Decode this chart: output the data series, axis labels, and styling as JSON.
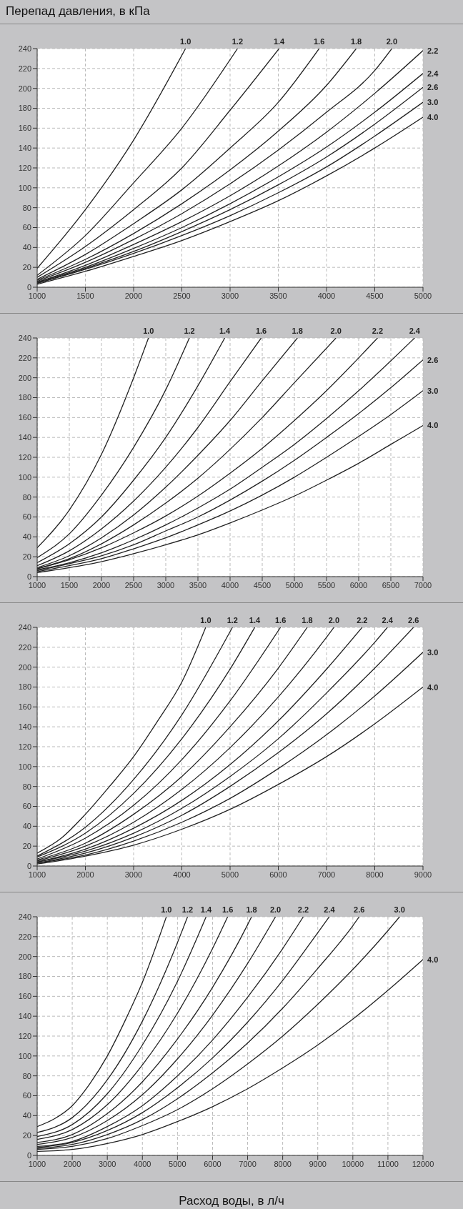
{
  "chart_data": [
    {
      "type": "line",
      "ylabel": "Перепад давления, в кПа",
      "xlim": [
        1000,
        5000
      ],
      "xticks": [
        1000,
        1500,
        2000,
        2500,
        3000,
        3500,
        4000,
        4500,
        5000
      ],
      "ylim": [
        0,
        240
      ],
      "yticks": [
        0,
        20,
        40,
        60,
        80,
        100,
        120,
        140,
        160,
        180,
        200,
        220,
        240
      ],
      "grid": true,
      "marker": "none",
      "series": [
        {
          "name": "1.0",
          "color": "#222222",
          "x": [
            1000,
            1500,
            2000,
            2538
          ],
          "values": [
            19,
            78,
            148,
            240
          ]
        },
        {
          "name": "1.2",
          "color": "#222222",
          "x": [
            1000,
            1500,
            2000,
            2500,
            3077
          ],
          "values": [
            12,
            52,
            105,
            160,
            240
          ]
        },
        {
          "name": "1.4",
          "color": "#222222",
          "x": [
            1000,
            1500,
            2000,
            2500,
            3000,
            3508
          ],
          "values": [
            10,
            41,
            78,
            120,
            178,
            240
          ]
        },
        {
          "name": "1.6",
          "color": "#222222",
          "x": [
            1000,
            1500,
            2000,
            2500,
            3000,
            3500,
            3923
          ],
          "values": [
            8,
            33,
            64,
            98,
            140,
            186,
            240
          ]
        },
        {
          "name": "1.8",
          "color": "#222222",
          "x": [
            1000,
            1500,
            2000,
            2500,
            3000,
            3500,
            4000,
            4308
          ],
          "values": [
            7,
            28,
            54,
            84,
            118,
            157,
            203,
            240
          ]
        },
        {
          "name": "2.0",
          "color": "#222222",
          "x": [
            1000,
            1500,
            2000,
            2500,
            3000,
            3500,
            4000,
            4500,
            4677
          ],
          "values": [
            6,
            25,
            48,
            74,
            104,
            138,
            176,
            218,
            240
          ]
        },
        {
          "name": "2.2",
          "color": "#222222",
          "x": [
            1000,
            1500,
            2000,
            2500,
            3000,
            3500,
            4000,
            4500,
            5000
          ],
          "values": [
            5,
            22,
            43,
            66,
            92,
            122,
            156,
            195,
            238
          ]
        },
        {
          "name": "2.4",
          "color": "#222222",
          "x": [
            1000,
            1500,
            2000,
            2500,
            3000,
            3500,
            4000,
            4500,
            5000
          ],
          "values": [
            5,
            20,
            39,
            60,
            84,
            111,
            141,
            176,
            215
          ]
        },
        {
          "name": "2.6",
          "color": "#222222",
          "x": [
            1000,
            1500,
            2000,
            2500,
            3000,
            3500,
            4000,
            4500,
            5000
          ],
          "values": [
            4,
            19,
            36,
            56,
            78,
            103,
            131,
            164,
            201
          ]
        },
        {
          "name": "3.0",
          "color": "#222222",
          "x": [
            1000,
            1500,
            2000,
            2500,
            3000,
            3500,
            4000,
            4500,
            5000
          ],
          "values": [
            4,
            18,
            34,
            52,
            72,
            95,
            121,
            152,
            186
          ]
        },
        {
          "name": "4.0",
          "color": "#222222",
          "x": [
            1000,
            1500,
            2000,
            2500,
            3000,
            3500,
            4000,
            4500,
            5000
          ],
          "values": [
            3,
            16,
            31,
            47,
            66,
            87,
            112,
            140,
            171
          ]
        }
      ]
    },
    {
      "type": "line",
      "xlim": [
        1000,
        7000
      ],
      "xticks": [
        1000,
        1500,
        2000,
        2500,
        3000,
        3500,
        4000,
        4500,
        5000,
        5500,
        6000,
        6500,
        7000
      ],
      "ylim": [
        0,
        240
      ],
      "yticks": [
        0,
        20,
        40,
        60,
        80,
        100,
        120,
        140,
        160,
        180,
        200,
        220,
        240
      ],
      "grid": true,
      "marker": "none",
      "series": [
        {
          "name": "1.0",
          "color": "#222222",
          "x": [
            1000,
            1500,
            2000,
            2500,
            2731
          ],
          "values": [
            29,
            67,
            123,
            200,
            240
          ]
        },
        {
          "name": "1.2",
          "color": "#222222",
          "x": [
            1000,
            1500,
            2000,
            2500,
            3000,
            3367
          ],
          "values": [
            19,
            43,
            82,
            130,
            188,
            240
          ]
        },
        {
          "name": "1.4",
          "color": "#222222",
          "x": [
            1000,
            1500,
            2000,
            2500,
            3000,
            3500,
            3917
          ],
          "values": [
            14,
            33,
            60,
            97,
            140,
            192,
            240
          ]
        },
        {
          "name": "1.6",
          "color": "#222222",
          "x": [
            1000,
            1500,
            2000,
            2500,
            3000,
            3500,
            4000,
            4484
          ],
          "values": [
            11,
            26,
            48,
            76,
            110,
            150,
            196,
            240
          ]
        },
        {
          "name": "1.8",
          "color": "#222222",
          "x": [
            1000,
            1500,
            2000,
            2500,
            3000,
            3500,
            4000,
            4500,
            5047
          ],
          "values": [
            9,
            21,
            39,
            62,
            90,
            122,
            157,
            197,
            240
          ]
        },
        {
          "name": "2.0",
          "color": "#222222",
          "x": [
            1000,
            1500,
            2000,
            2500,
            3000,
            3500,
            4000,
            4500,
            5000,
            5647
          ],
          "values": [
            8,
            18,
            33,
            52,
            74,
            99,
            128,
            160,
            195,
            240
          ]
        },
        {
          "name": "2.2",
          "color": "#222222",
          "x": [
            1000,
            1500,
            2000,
            2500,
            3000,
            3500,
            4000,
            4500,
            5000,
            5500,
            6000,
            6293
          ],
          "values": [
            8,
            17,
            29,
            44,
            61,
            81,
            104,
            129,
            157,
            187,
            220,
            240
          ]
        },
        {
          "name": "2.4",
          "color": "#222222",
          "x": [
            1000,
            1500,
            2000,
            2500,
            3000,
            3500,
            4000,
            4500,
            5000,
            5500,
            6000,
            6500,
            6870
          ],
          "values": [
            7,
            14,
            24,
            37,
            52,
            69,
            88,
            110,
            133,
            159,
            187,
            217,
            240
          ]
        },
        {
          "name": "2.6",
          "color": "#222222",
          "x": [
            1000,
            1500,
            2000,
            2500,
            3000,
            3500,
            4000,
            4500,
            5000,
            5500,
            6000,
            6500,
            7000
          ],
          "values": [
            6,
            13,
            21,
            32,
            46,
            60,
            77,
            96,
            117,
            140,
            164,
            190,
            218
          ]
        },
        {
          "name": "3.0",
          "color": "#222222",
          "x": [
            1000,
            1500,
            2000,
            2500,
            3000,
            3500,
            4000,
            4500,
            5000,
            5500,
            6000,
            6500,
            7000
          ],
          "values": [
            5,
            11,
            18,
            28,
            39,
            52,
            66,
            82,
            100,
            120,
            141,
            163,
            187
          ]
        },
        {
          "name": "4.0",
          "color": "#222222",
          "x": [
            1000,
            1500,
            2000,
            2500,
            3000,
            3500,
            4000,
            4500,
            5000,
            5500,
            6000,
            6500,
            7000
          ],
          "values": [
            4,
            9,
            15,
            23,
            32,
            42,
            54,
            67,
            81,
            97,
            114,
            133,
            152
          ]
        }
      ]
    },
    {
      "type": "line",
      "xlim": [
        1000,
        9000
      ],
      "xticks": [
        1000,
        2000,
        3000,
        4000,
        5000,
        6000,
        7000,
        8000,
        9000
      ],
      "ylim": [
        0,
        240
      ],
      "yticks": [
        0,
        20,
        40,
        60,
        80,
        100,
        120,
        140,
        160,
        180,
        200,
        220,
        240
      ],
      "grid": true,
      "marker": "none",
      "series": [
        {
          "name": "1.0",
          "color": "#222222",
          "x": [
            1000,
            1500,
            2000,
            2500,
            3000,
            3500,
            4000,
            4495
          ],
          "values": [
            13,
            28,
            52,
            80,
            110,
            146,
            185,
            240
          ]
        },
        {
          "name": "1.2",
          "color": "#222222",
          "x": [
            1000,
            2000,
            3000,
            4000,
            5049
          ],
          "values": [
            10,
            39,
            87,
            152,
            240
          ]
        },
        {
          "name": "1.4",
          "color": "#222222",
          "x": [
            1000,
            2000,
            3000,
            4000,
            5000,
            5511
          ],
          "values": [
            9,
            33,
            73,
            128,
            198,
            240
          ]
        },
        {
          "name": "1.6",
          "color": "#222222",
          "x": [
            1000,
            2000,
            3000,
            4000,
            5000,
            6046
          ],
          "values": [
            7,
            28,
            61,
            107,
            166,
            240
          ]
        },
        {
          "name": "1.8",
          "color": "#222222",
          "x": [
            1000,
            2000,
            3000,
            4000,
            5000,
            6000,
            6600
          ],
          "values": [
            6,
            23,
            52,
            90,
            140,
            199,
            240
          ]
        },
        {
          "name": "2.0",
          "color": "#222222",
          "x": [
            1000,
            2000,
            3000,
            4000,
            5000,
            6000,
            7000,
            7154
          ],
          "values": [
            5,
            20,
            44,
            77,
            119,
            170,
            230,
            240
          ]
        },
        {
          "name": "2.2",
          "color": "#222222",
          "x": [
            1000,
            2000,
            3000,
            4000,
            5000,
            6000,
            7000,
            7738
          ],
          "values": [
            4,
            17,
            38,
            66,
            102,
            146,
            198,
            240
          ]
        },
        {
          "name": "2.4",
          "color": "#222222",
          "x": [
            1000,
            2000,
            3000,
            4000,
            5000,
            6000,
            7000,
            8000,
            8262
          ],
          "values": [
            4,
            15,
            33,
            58,
            90,
            128,
            174,
            225,
            240
          ]
        },
        {
          "name": "2.6",
          "color": "#222222",
          "x": [
            1000,
            2000,
            3000,
            4000,
            5000,
            6000,
            7000,
            8000,
            8803
          ],
          "values": [
            3,
            13,
            29,
            51,
            80,
            114,
            153,
            199,
            240
          ]
        },
        {
          "name": "3.0",
          "color": "#222222",
          "x": [
            1000,
            2000,
            3000,
            4000,
            5000,
            6000,
            7000,
            8000,
            9000
          ],
          "values": [
            3,
            11,
            25,
            44,
            68,
            98,
            132,
            171,
            215
          ]
        },
        {
          "name": "4.0",
          "color": "#222222",
          "x": [
            1000,
            2000,
            3000,
            4000,
            5000,
            6000,
            7000,
            8000,
            9000
          ],
          "values": [
            2,
            10,
            21,
            37,
            57,
            82,
            110,
            143,
            180
          ]
        }
      ]
    },
    {
      "type": "line",
      "xlabel": "Расход воды, в л/ч",
      "xlim": [
        1000,
        12000
      ],
      "xticks": [
        1000,
        2000,
        3000,
        4000,
        5000,
        6000,
        7000,
        8000,
        9000,
        10000,
        11000,
        12000
      ],
      "ylim": [
        0,
        240
      ],
      "yticks": [
        0,
        20,
        40,
        60,
        80,
        100,
        120,
        140,
        160,
        180,
        200,
        220,
        240
      ],
      "grid": true,
      "marker": "none",
      "series": [
        {
          "name": "1.0",
          "color": "#222222",
          "x": [
            1000,
            1500,
            2000,
            2500,
            3000,
            3500,
            4000,
            4683
          ],
          "values": [
            29,
            37,
            50,
            72,
            100,
            135,
            174,
            240
          ]
        },
        {
          "name": "1.2",
          "color": "#222222",
          "x": [
            1000,
            2000,
            3000,
            4000,
            5000,
            5288
          ],
          "values": [
            23,
            38,
            76,
            135,
            214,
            240
          ]
        },
        {
          "name": "1.4",
          "color": "#222222",
          "x": [
            1000,
            2000,
            3000,
            4000,
            5000,
            5817
          ],
          "values": [
            19,
            31,
            62,
            111,
            175,
            240
          ]
        },
        {
          "name": "1.6",
          "color": "#222222",
          "x": [
            1000,
            2000,
            3000,
            4000,
            5000,
            6000,
            6431
          ],
          "values": [
            16,
            26,
            51,
            91,
            143,
            208,
            240
          ]
        },
        {
          "name": "1.8",
          "color": "#222222",
          "x": [
            1000,
            2000,
            3000,
            4000,
            5000,
            6000,
            7000,
            7113
          ],
          "values": [
            13,
            21,
            42,
            74,
            117,
            169,
            232,
            240
          ]
        },
        {
          "name": "2.0",
          "color": "#222222",
          "x": [
            1000,
            2000,
            3000,
            4000,
            5000,
            6000,
            7000,
            7795
          ],
          "values": [
            11,
            18,
            35,
            61,
            97,
            141,
            193,
            240
          ]
        },
        {
          "name": "2.2",
          "color": "#222222",
          "x": [
            1000,
            2000,
            3000,
            4000,
            5000,
            6000,
            7000,
            8000,
            8588
          ],
          "values": [
            9,
            14,
            29,
            50,
            80,
            116,
            159,
            208,
            240
          ]
        },
        {
          "name": "2.4",
          "color": "#222222",
          "x": [
            1000,
            2000,
            3000,
            4000,
            5000,
            6000,
            7000,
            8000,
            9000,
            9329
          ],
          "values": [
            8,
            13,
            25,
            43,
            68,
            98,
            134,
            176,
            224,
            240
          ]
        },
        {
          "name": "2.6",
          "color": "#222222",
          "x": [
            1000,
            2000,
            3000,
            4000,
            5000,
            6000,
            7000,
            8000,
            9000,
            10000,
            10182
          ],
          "values": [
            7,
            11,
            21,
            36,
            57,
            83,
            113,
            148,
            188,
            231,
            240
          ]
        },
        {
          "name": "3.0",
          "color": "#222222",
          "x": [
            1000,
            2000,
            3000,
            4000,
            5000,
            6000,
            7000,
            8000,
            9000,
            10000,
            11000,
            11333
          ],
          "values": [
            6,
            9,
            17,
            30,
            46,
            67,
            92,
            120,
            152,
            187,
            226,
            240
          ]
        },
        {
          "name": "4.0",
          "color": "#222222",
          "x": [
            1000,
            2000,
            3000,
            4000,
            5000,
            6000,
            7000,
            8000,
            9000,
            10000,
            11000,
            12000
          ],
          "values": [
            4,
            6,
            12,
            21,
            34,
            49,
            67,
            88,
            111,
            137,
            166,
            197
          ]
        }
      ]
    }
  ]
}
